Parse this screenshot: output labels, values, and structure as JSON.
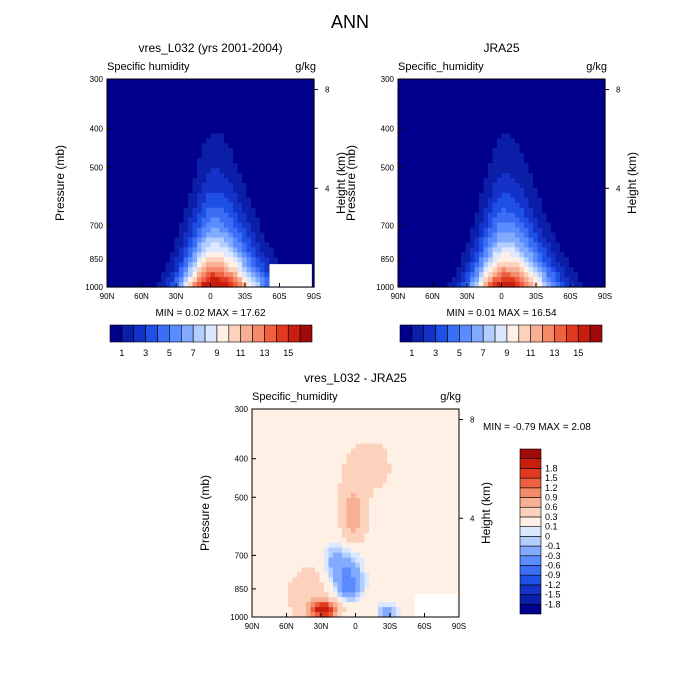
{
  "figure": {
    "title": "ANN"
  },
  "chart_data": [
    {
      "type": "heatmap",
      "panel": "model",
      "title": "vres_L032 (yrs 2001-2004)",
      "left_label": "Specific humidity",
      "right_label": "g/kg",
      "xlabel": "",
      "ylabel": "Pressure (mb)",
      "ylabel_right": "Height (km)",
      "x_ticks": [
        "90N",
        "60N",
        "30N",
        "0",
        "30S",
        "60S",
        "90S"
      ],
      "y_ticks": [
        "300",
        "400",
        "500",
        "700",
        "850",
        "1000"
      ],
      "y_ticks_right": [
        "8",
        "4"
      ],
      "xlim": [
        90,
        -90
      ],
      "ylim": [
        1000,
        300
      ],
      "stats": "MIN =   0.02  MAX =  17.62",
      "min": 0.02,
      "max": 17.62,
      "contour_levels": [
        1,
        2,
        3,
        4,
        5,
        6,
        7,
        8,
        9,
        10,
        11,
        12,
        13,
        14,
        15
      ],
      "colorbar_labels": [
        "1",
        "3",
        "5",
        "7",
        "9",
        "11",
        "13",
        "15"
      ],
      "colors": [
        "#00008c",
        "#0a1ea8",
        "#1432c8",
        "#1e50e6",
        "#3c6ef5",
        "#5a8cff",
        "#82aaff",
        "#b4cdff",
        "#dce8ff",
        "#fff0e6",
        "#fcd2bc",
        "#f8b094",
        "#f48a6a",
        "#ee6040",
        "#e23a20",
        "#c81e10",
        "#a00a0a"
      ],
      "field": {
        "kind": "moist_plume",
        "peak_lat": -3,
        "peak_value": 17.62,
        "asymmetry": 0.2
      }
    },
    {
      "type": "heatmap",
      "panel": "obs",
      "title": "JRA25",
      "left_label": "Specific_humidity",
      "right_label": "g/kg",
      "xlabel": "",
      "ylabel": "Pressure (mb)",
      "ylabel_right": "Height (km)",
      "x_ticks": [
        "90N",
        "60N",
        "30N",
        "0",
        "30S",
        "60S",
        "90S"
      ],
      "y_ticks": [
        "300",
        "400",
        "500",
        "700",
        "850",
        "1000"
      ],
      "y_ticks_right": [
        "8",
        "4"
      ],
      "xlim": [
        90,
        -90
      ],
      "ylim": [
        1000,
        300
      ],
      "stats": "MIN =   0.01  MAX =  16.54",
      "min": 0.01,
      "max": 16.54,
      "contour_levels": [
        1,
        2,
        3,
        4,
        5,
        6,
        7,
        8,
        9,
        10,
        11,
        12,
        13,
        14,
        15
      ],
      "colorbar_labels": [
        "1",
        "3",
        "5",
        "7",
        "9",
        "11",
        "13",
        "15"
      ],
      "colors": [
        "#00008c",
        "#0a1ea8",
        "#1432c8",
        "#1e50e6",
        "#3c6ef5",
        "#5a8cff",
        "#82aaff",
        "#b4cdff",
        "#dce8ff",
        "#fff0e6",
        "#fcd2bc",
        "#f8b094",
        "#f48a6a",
        "#ee6040",
        "#e23a20",
        "#c81e10",
        "#a00a0a"
      ],
      "field": {
        "kind": "moist_plume",
        "peak_lat": -3,
        "peak_value": 16.54,
        "asymmetry": 0.2
      }
    },
    {
      "type": "heatmap",
      "panel": "difference",
      "title": "vres_L032 - JRA25",
      "left_label": "Specific_humidity",
      "right_label": "g/kg",
      "xlabel": "",
      "ylabel": "Pressure (mb)",
      "ylabel_right": "Height (km)",
      "x_ticks": [
        "90N",
        "60N",
        "30N",
        "0",
        "30S",
        "60S",
        "90S"
      ],
      "y_ticks": [
        "300",
        "400",
        "500",
        "700",
        "850",
        "1000"
      ],
      "y_ticks_right": [
        "8",
        "4"
      ],
      "xlim": [
        90,
        -90
      ],
      "ylim": [
        1000,
        300
      ],
      "stats": "MIN =  -0.79  MAX =   2.08",
      "min": -0.79,
      "max": 2.08,
      "contour_levels": [
        -1.8,
        -1.5,
        -1.2,
        -0.9,
        -0.6,
        -0.3,
        -0.1,
        0,
        0.1,
        0.3,
        0.6,
        0.9,
        1.2,
        1.5,
        1.8
      ],
      "colorbar_labels": [
        "1.8",
        "1.5",
        "1.2",
        "0.9",
        "0.6",
        "0.3",
        "0.1",
        "0",
        "-0.1",
        "-0.3",
        "-0.6",
        "-0.9",
        "-1.2",
        "-1.5",
        "-1.8"
      ],
      "colors": [
        "#00008c",
        "#0a1ea8",
        "#1432c8",
        "#1e50e6",
        "#3c6ef5",
        "#5a8cff",
        "#82aaff",
        "#b4cdff",
        "#dce8ff",
        "#fff0e6",
        "#fcd2bc",
        "#f8b094",
        "#f48a6a",
        "#ee6040",
        "#e23a20",
        "#c81e10",
        "#a00a0a"
      ],
      "field": {
        "kind": "difference",
        "background": 0.2,
        "features": [
          {
            "lat": 2,
            "p": 560,
            "lat_width": 10,
            "p_width": 90,
            "value": 0.6
          },
          {
            "lat": 28,
            "p": 960,
            "lat_width": 11,
            "p_width": 45,
            "value": 2.0
          },
          {
            "lat": 8,
            "p": 780,
            "lat_width": 14,
            "p_width": 110,
            "value": -0.5
          },
          {
            "lat": 5,
            "p": 850,
            "lat_width": 10,
            "p_width": 60,
            "value": -0.3
          },
          {
            "lat": 20,
            "p": 720,
            "lat_width": 8,
            "p_width": 60,
            "value": -0.25
          },
          {
            "lat": -28,
            "p": 970,
            "lat_width": 8,
            "p_width": 40,
            "value": -0.5
          },
          {
            "lat": -12,
            "p": 420,
            "lat_width": 28,
            "p_width": 90,
            "value": 0.15
          },
          {
            "lat": 40,
            "p": 880,
            "lat_width": 22,
            "p_width": 160,
            "value": 0.2
          }
        ]
      }
    }
  ]
}
